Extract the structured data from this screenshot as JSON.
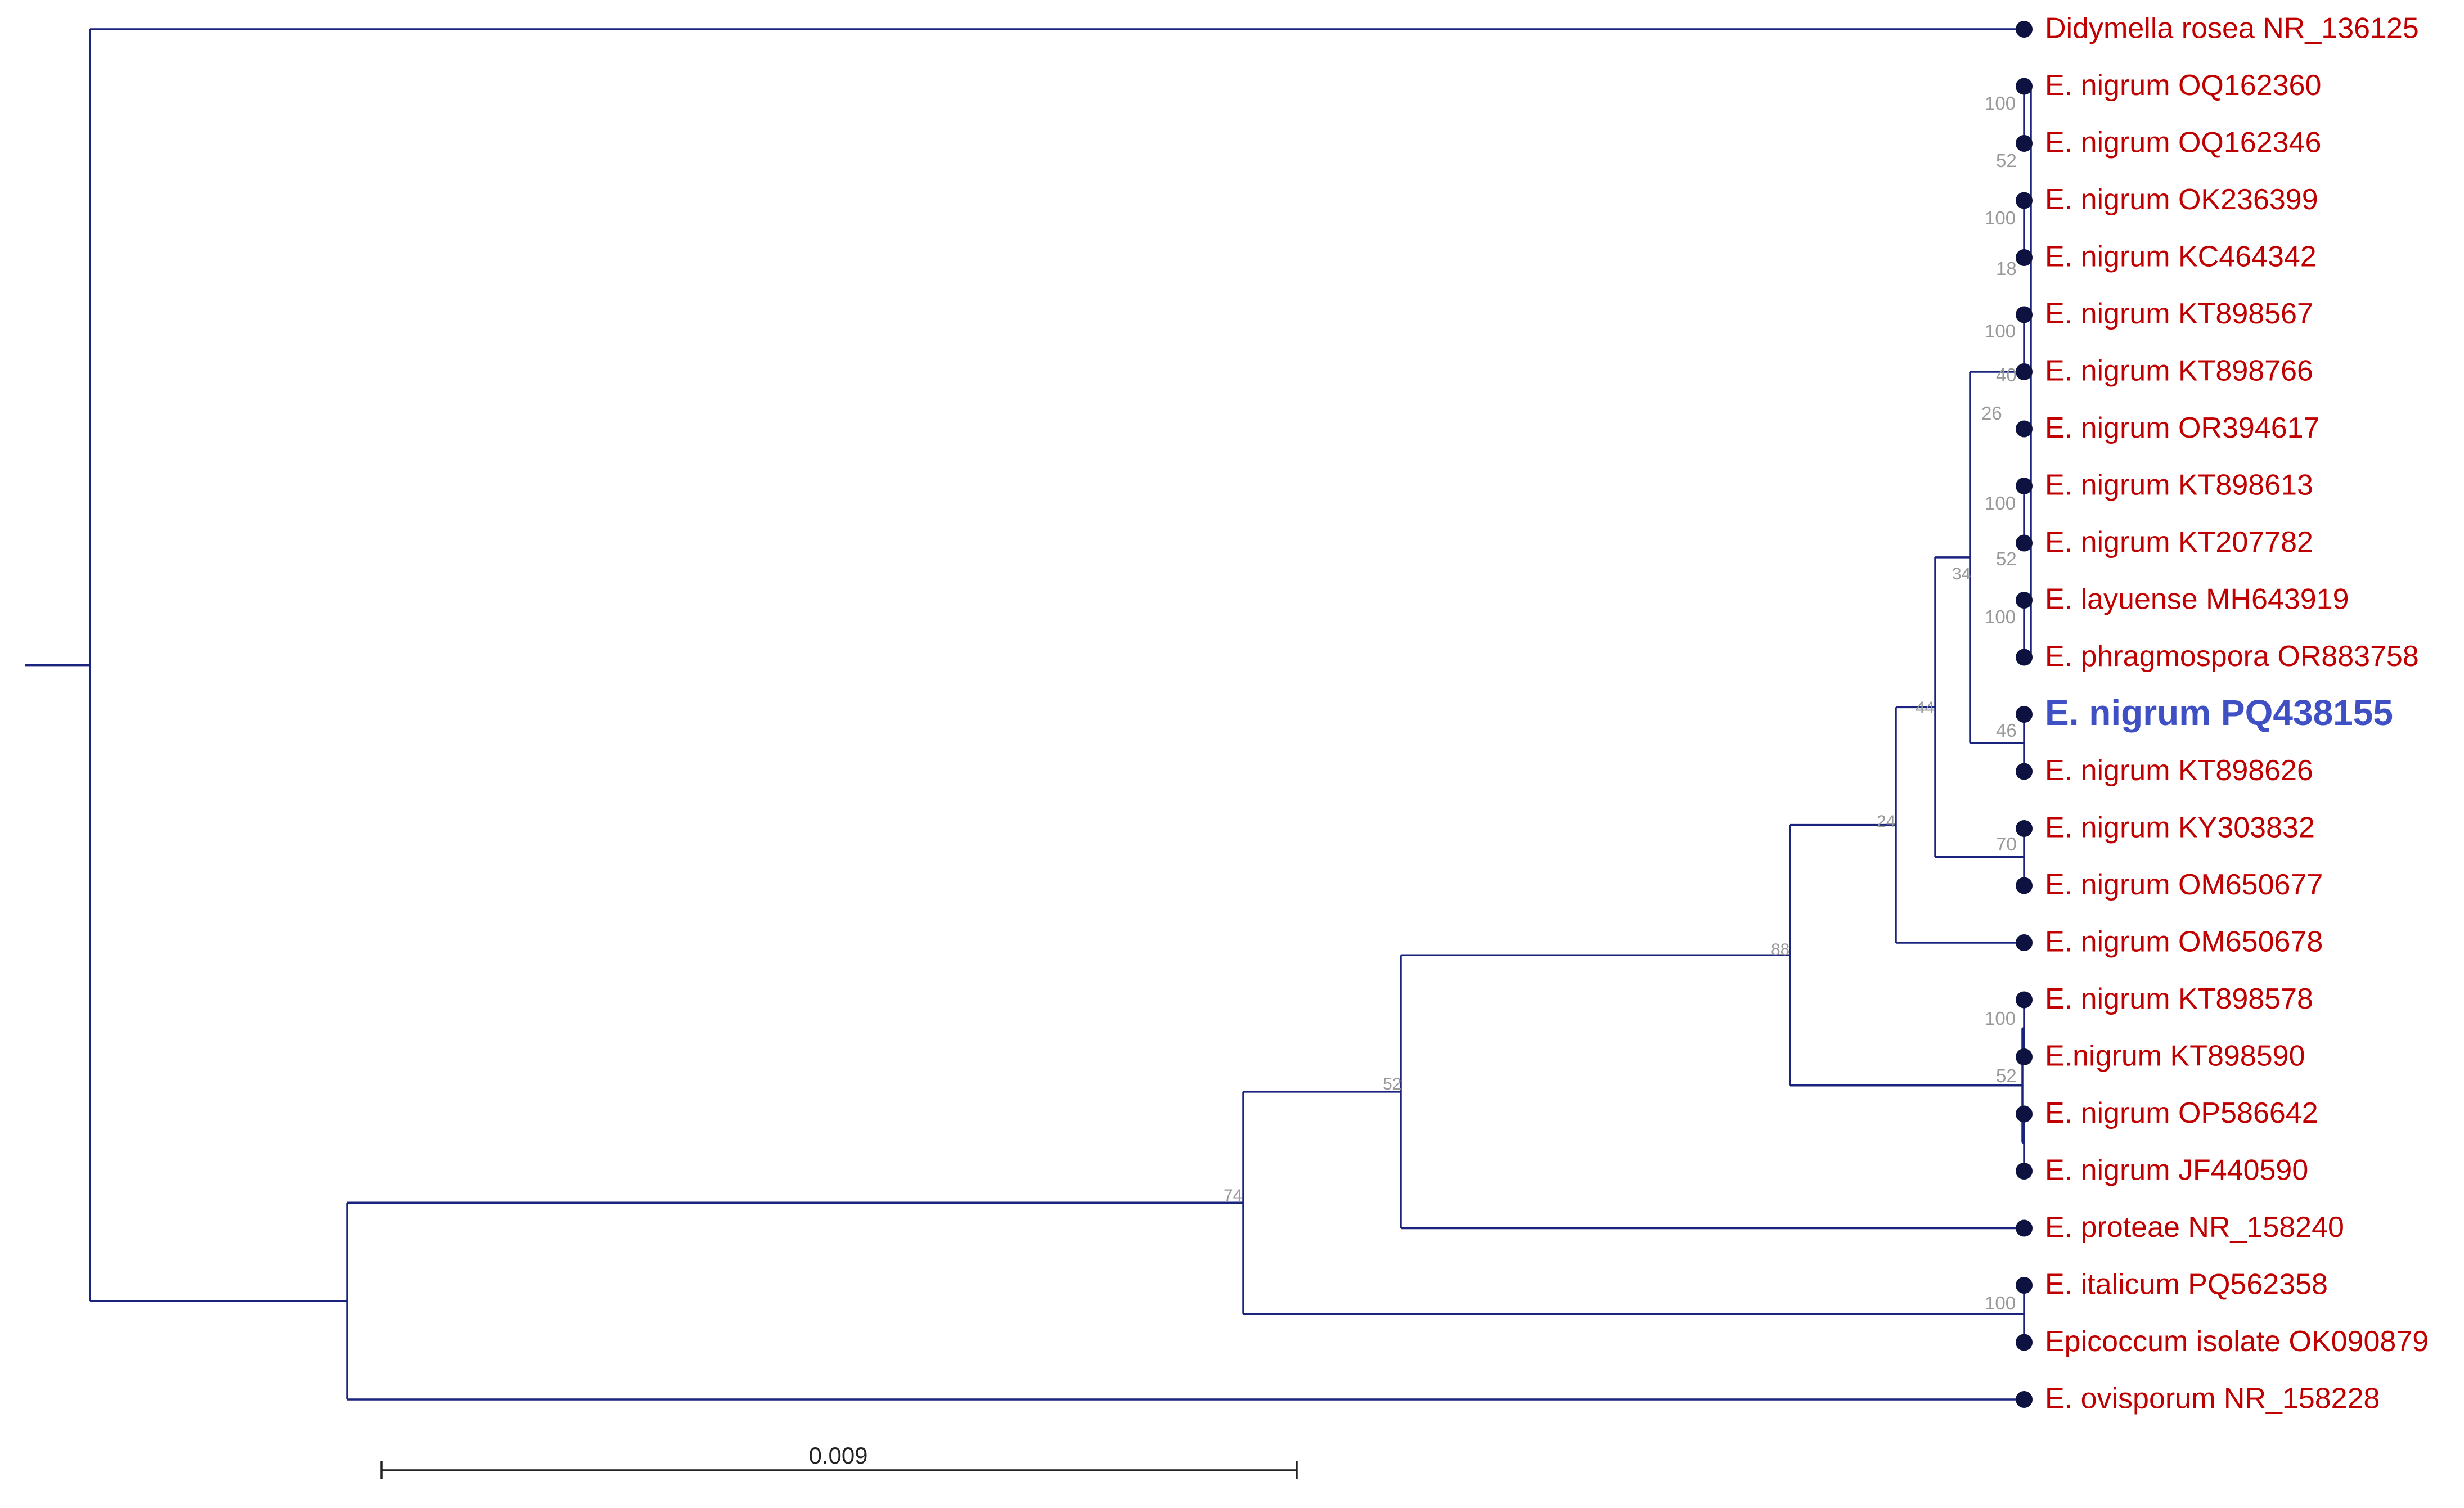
{
  "tree": {
    "leaves": [
      {
        "id": "L0",
        "label": "Didymella rosea NR_136125",
        "highlight": false
      },
      {
        "id": "L1",
        "label": "E. nigrum OQ162360",
        "highlight": false
      },
      {
        "id": "L2",
        "label": "E. nigrum OQ162346",
        "highlight": false
      },
      {
        "id": "L3",
        "label": "E. nigrum OK236399",
        "highlight": false
      },
      {
        "id": "L4",
        "label": "E. nigrum KC464342",
        "highlight": false
      },
      {
        "id": "L5",
        "label": "E. nigrum KT898567",
        "highlight": false
      },
      {
        "id": "L6",
        "label": "E. nigrum KT898766",
        "highlight": false
      },
      {
        "id": "L7",
        "label": "E. nigrum OR394617",
        "highlight": false
      },
      {
        "id": "L8",
        "label": "E. nigrum KT898613",
        "highlight": false
      },
      {
        "id": "L9",
        "label": "E. nigrum KT207782",
        "highlight": false
      },
      {
        "id": "L10",
        "label": "E. layuense MH643919",
        "highlight": false
      },
      {
        "id": "L11",
        "label": "E. phragmospora OR883758",
        "highlight": false
      },
      {
        "id": "L12",
        "label": "E. nigrum PQ438155",
        "highlight": true
      },
      {
        "id": "L13",
        "label": "E. nigrum KT898626",
        "highlight": false
      },
      {
        "id": "L14",
        "label": "E. nigrum KY303832",
        "highlight": false
      },
      {
        "id": "L15",
        "label": "E. nigrum OM650677",
        "highlight": false
      },
      {
        "id": "L16",
        "label": "E. nigrum OM650678",
        "highlight": false
      },
      {
        "id": "L17",
        "label": "E. nigrum KT898578",
        "highlight": false
      },
      {
        "id": "L18",
        "label": "E.nigrum KT898590",
        "highlight": false
      },
      {
        "id": "L19",
        "label": "E. nigrum OP586642",
        "highlight": false
      },
      {
        "id": "L20",
        "label": "E. nigrum JF440590",
        "highlight": false
      },
      {
        "id": "L21",
        "label": "E. proteae NR_158240",
        "highlight": false
      },
      {
        "id": "L22",
        "label": "E. italicum PQ562358",
        "highlight": false
      },
      {
        "id": "L23",
        "label": "Epicoccum isolate OK090879",
        "highlight": false
      },
      {
        "id": "L24",
        "label": "E. ovisporum NR_158228",
        "highlight": false
      }
    ],
    "support_values": [
      "100",
      "52",
      "100",
      "18",
      "100",
      "40",
      "26",
      "100",
      "52",
      "100",
      "46",
      "34",
      "44",
      "24",
      "70",
      "88",
      "52",
      "100",
      "52",
      "74",
      "100"
    ],
    "scale_bar_label": "0.009",
    "colors": {
      "branch": "#1a237e",
      "tip": "#0d1240",
      "label": "#c00000",
      "highlight": "#3f4fc4",
      "support": "#999999"
    }
  }
}
